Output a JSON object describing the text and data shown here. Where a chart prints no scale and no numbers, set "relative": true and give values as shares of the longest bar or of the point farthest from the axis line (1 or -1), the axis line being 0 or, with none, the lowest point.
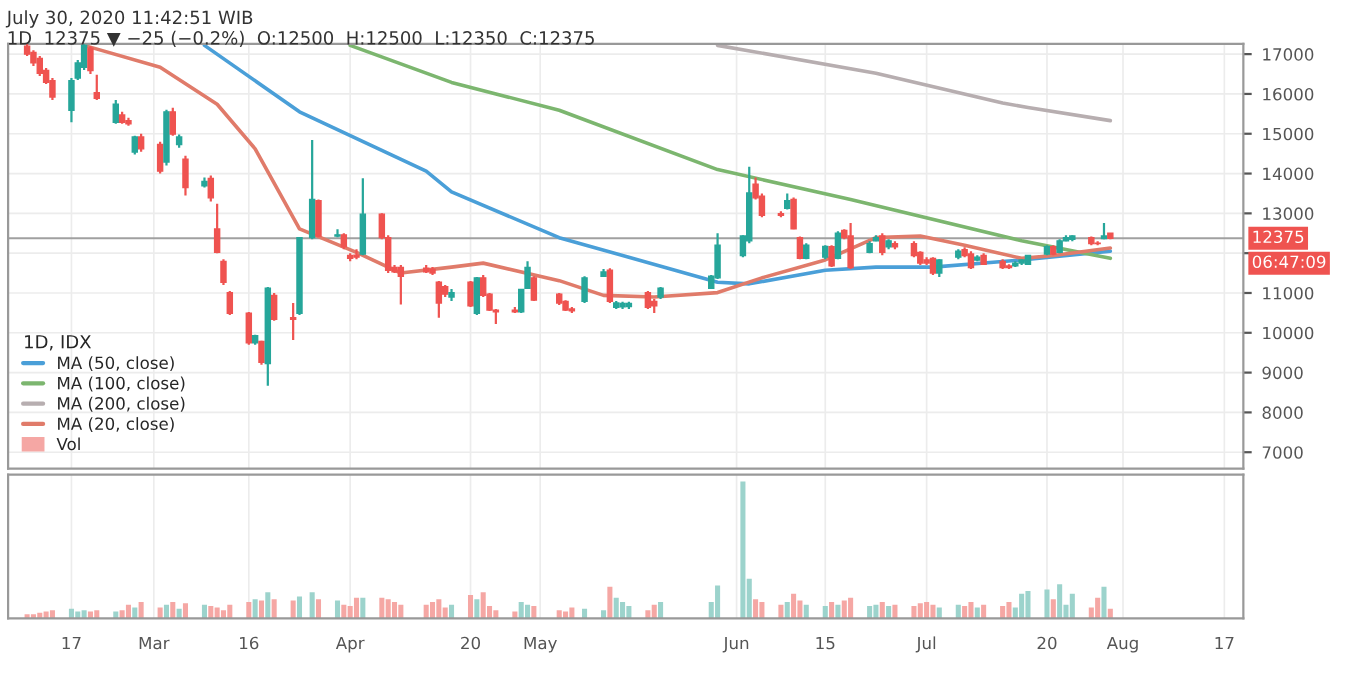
{
  "chart_data": [
    {
      "type": "candlestick",
      "title": "1D, IDX",
      "annotations": [
        "July 30, 2020 11:42:51 WIB",
        "1D  12375 ▼ −25 (−0.2%)  O:12500  H:12500  L:12350  C:12375",
        "06:47:09"
      ],
      "x": [
        "2020-02-10",
        "2020-02-11",
        "2020-02-12",
        "2020-02-13",
        "2020-02-14",
        "2020-02-17",
        "2020-02-18",
        "2020-02-19",
        "2020-02-20",
        "2020-02-21",
        "2020-02-24",
        "2020-02-25",
        "2020-02-26",
        "2020-02-27",
        "2020-02-28",
        "2020-03-02",
        "2020-03-03",
        "2020-03-04",
        "2020-03-05",
        "2020-03-06",
        "2020-03-09",
        "2020-03-10",
        "2020-03-11",
        "2020-03-12",
        "2020-03-13",
        "2020-03-16",
        "2020-03-17",
        "2020-03-18",
        "2020-03-19",
        "2020-03-20",
        "2020-03-23",
        "2020-03-24",
        "2020-03-26",
        "2020-03-27",
        "2020-03-30",
        "2020-03-31",
        "2020-04-01",
        "2020-04-02",
        "2020-04-03",
        "2020-04-06",
        "2020-04-07",
        "2020-04-08",
        "2020-04-09",
        "2020-04-13",
        "2020-04-14",
        "2020-04-15",
        "2020-04-16",
        "2020-04-17",
        "2020-04-20",
        "2020-04-21",
        "2020-04-22",
        "2020-04-23",
        "2020-04-24",
        "2020-04-27",
        "2020-04-28",
        "2020-04-29",
        "2020-04-30",
        "2020-05-04",
        "2020-05-05",
        "2020-05-06",
        "2020-05-08",
        "2020-05-11",
        "2020-05-12",
        "2020-05-13",
        "2020-05-14",
        "2020-05-15",
        "2020-05-18",
        "2020-05-19",
        "2020-05-20",
        "2020-05-28",
        "2020-05-29",
        "2020-06-02",
        "2020-06-03",
        "2020-06-04",
        "2020-06-05",
        "2020-06-08",
        "2020-06-09",
        "2020-06-10",
        "2020-06-11",
        "2020-06-12",
        "2020-06-15",
        "2020-06-16",
        "2020-06-17",
        "2020-06-18",
        "2020-06-19",
        "2020-06-22",
        "2020-06-23",
        "2020-06-24",
        "2020-06-25",
        "2020-06-26",
        "2020-06-29",
        "2020-06-30",
        "2020-07-01",
        "2020-07-02",
        "2020-07-03",
        "2020-07-06",
        "2020-07-07",
        "2020-07-08",
        "2020-07-09",
        "2020-07-10",
        "2020-07-13",
        "2020-07-14",
        "2020-07-15",
        "2020-07-16",
        "2020-07-17",
        "2020-07-20",
        "2020-07-21",
        "2020-07-22",
        "2020-07-23",
        "2020-07-24",
        "2020-07-27",
        "2020-07-28",
        "2020-07-29",
        "2020-07-30"
      ],
      "ohlc": [
        [
          17200,
          17260,
          16950,
          17000
        ],
        [
          17040,
          17100,
          16700,
          16780
        ],
        [
          16890,
          16950,
          16450,
          16520
        ],
        [
          16590,
          16650,
          16250,
          16290
        ],
        [
          16330,
          16400,
          15850,
          15920
        ],
        [
          15590,
          16400,
          15290,
          16330
        ],
        [
          16400,
          16850,
          16350,
          16780
        ],
        [
          16670,
          17250,
          16600,
          17220
        ],
        [
          17150,
          17200,
          16500,
          16590
        ],
        [
          16030,
          16480,
          15850,
          15890
        ],
        [
          15290,
          15850,
          15250,
          15740
        ],
        [
          15470,
          15550,
          15250,
          15290
        ],
        [
          15330,
          15400,
          15200,
          15250
        ],
        [
          14540,
          14950,
          14480,
          14920
        ],
        [
          14920,
          15000,
          14550,
          14620
        ],
        [
          14730,
          14800,
          14000,
          14060
        ],
        [
          14290,
          15600,
          14200,
          15550
        ],
        [
          15550,
          15650,
          14950,
          14990
        ],
        [
          14730,
          14980,
          14650,
          14920
        ],
        [
          14360,
          14450,
          13450,
          13650
        ],
        [
          13690,
          13900,
          13650,
          13800
        ],
        [
          13880,
          13950,
          13300,
          13390
        ],
        [
          12610,
          13240,
          12000,
          12020
        ],
        [
          11790,
          11850,
          11200,
          11270
        ],
        [
          11010,
          11050,
          10450,
          10490
        ],
        [
          10490,
          10520,
          9700,
          9750
        ],
        [
          9750,
          9950,
          9700,
          9930
        ],
        [
          9780,
          9800,
          9200,
          9260
        ],
        [
          9230,
          11150,
          8670,
          11120
        ],
        [
          10940,
          11000,
          10300,
          10340
        ],
        [
          10380,
          10750,
          9820,
          10340
        ],
        [
          10490,
          12400,
          10450,
          12390
        ],
        [
          12390,
          14840,
          12350,
          13350
        ],
        [
          13320,
          13350,
          12400,
          12430
        ],
        [
          12430,
          12600,
          12400,
          12460
        ],
        [
          12460,
          12500,
          12100,
          12160
        ],
        [
          11940,
          12000,
          11800,
          11870
        ],
        [
          11950,
          12100,
          11850,
          11900
        ],
        [
          11980,
          13880,
          11950,
          12980
        ],
        [
          12980,
          13000,
          12350,
          12390
        ],
        [
          12390,
          12450,
          11500,
          11570
        ],
        [
          11640,
          11700,
          11500,
          11530
        ],
        [
          11640,
          11700,
          10710,
          11420
        ],
        [
          11620,
          11700,
          11500,
          11530
        ],
        [
          11600,
          11650,
          11450,
          11500
        ],
        [
          11270,
          11300,
          10380,
          10750
        ],
        [
          11160,
          11200,
          10900,
          10970
        ],
        [
          10900,
          11100,
          10800,
          11010
        ],
        [
          11270,
          11300,
          10650,
          10680
        ],
        [
          10490,
          11400,
          10450,
          11380
        ],
        [
          11380,
          11450,
          10900,
          10940
        ],
        [
          10970,
          11000,
          10550,
          10570
        ],
        [
          10570,
          10600,
          10220,
          10530
        ],
        [
          10570,
          10650,
          10500,
          10530
        ],
        [
          10530,
          11100,
          10500,
          11090
        ],
        [
          11120,
          11800,
          11100,
          11640
        ],
        [
          11380,
          11420,
          10800,
          10820
        ],
        [
          10970,
          11000,
          10700,
          10750
        ],
        [
          10790,
          10820,
          10550,
          10570
        ],
        [
          10600,
          10650,
          10500,
          10550
        ],
        [
          10790,
          11420,
          10750,
          11380
        ],
        [
          11420,
          11600,
          11400,
          11530
        ],
        [
          11570,
          11620,
          10750,
          10790
        ],
        [
          10640,
          10800,
          10600,
          10750
        ],
        [
          10650,
          10780,
          10600,
          10740
        ],
        [
          10660,
          10780,
          10600,
          10740
        ],
        [
          11010,
          11050,
          10600,
          10640
        ],
        [
          10790,
          10850,
          10500,
          10680
        ],
        [
          10900,
          11150,
          10850,
          11120
        ],
        [
          11120,
          11450,
          11100,
          11420
        ],
        [
          11380,
          12500,
          11350,
          12200
        ],
        [
          11940,
          12450,
          11900,
          12430
        ],
        [
          12310,
          14170,
          12250,
          13510
        ],
        [
          13730,
          13900,
          13350,
          13390
        ],
        [
          13430,
          13500,
          12900,
          12950
        ],
        [
          12990,
          13050,
          12900,
          12950
        ],
        [
          13130,
          13500,
          13100,
          13320
        ],
        [
          13350,
          13400,
          12600,
          12610
        ],
        [
          12390,
          12420,
          11850,
          11870
        ],
        [
          11870,
          12250,
          11850,
          12200
        ],
        [
          11900,
          12200,
          11850,
          12170
        ],
        [
          12160,
          12200,
          11650,
          11680
        ],
        [
          11870,
          12550,
          11850,
          12500
        ],
        [
          12570,
          12600,
          12350,
          12390
        ],
        [
          12430,
          12760,
          11600,
          11640
        ],
        [
          12020,
          12300,
          12000,
          12240
        ],
        [
          12310,
          12450,
          12300,
          12390
        ],
        [
          12430,
          12500,
          11950,
          12020
        ],
        [
          12160,
          12350,
          12100,
          12310
        ],
        [
          12240,
          12300,
          12100,
          12160
        ],
        [
          12240,
          12300,
          11900,
          11940
        ],
        [
          12020,
          12050,
          11700,
          11750
        ],
        [
          11830,
          11900,
          11700,
          11750
        ],
        [
          11870,
          11900,
          11450,
          11500
        ],
        [
          11500,
          11850,
          11400,
          11830
        ],
        [
          11900,
          12100,
          11850,
          12050
        ],
        [
          12090,
          12150,
          11900,
          11940
        ],
        [
          11980,
          12050,
          11600,
          11640
        ],
        [
          11830,
          11950,
          11800,
          11900
        ],
        [
          11940,
          12000,
          11700,
          11720
        ],
        [
          11790,
          11850,
          11600,
          11640
        ],
        [
          11680,
          11720,
          11600,
          11640
        ],
        [
          11680,
          11800,
          11650,
          11750
        ],
        [
          11750,
          11850,
          11700,
          11830
        ],
        [
          11720,
          11950,
          11700,
          11940
        ],
        [
          11980,
          12200,
          11950,
          12160
        ],
        [
          12160,
          12200,
          11950,
          11980
        ],
        [
          12020,
          12350,
          12000,
          12310
        ],
        [
          12310,
          12450,
          12300,
          12390
        ],
        [
          12350,
          12450,
          12300,
          12430
        ],
        [
          12390,
          12420,
          12200,
          12240
        ],
        [
          12250,
          12300,
          12200,
          12240
        ],
        [
          12370,
          12760,
          12350,
          12430
        ],
        [
          12500,
          12500,
          12350,
          12375
        ]
      ],
      "colors": [
        "#ef5350",
        "#ef5350",
        "#ef5350",
        "#ef5350",
        "#ef5350",
        "#26a69a",
        "#26a69a",
        "#26a69a",
        "#ef5350",
        "#ef5350",
        "#26a69a",
        "#ef5350",
        "#ef5350",
        "#26a69a",
        "#ef5350",
        "#ef5350",
        "#26a69a",
        "#ef5350",
        "#26a69a",
        "#ef5350",
        "#26a69a",
        "#ef5350",
        "#ef5350",
        "#ef5350",
        "#ef5350",
        "#ef5350",
        "#26a69a",
        "#ef5350",
        "#26a69a",
        "#ef5350",
        "#ef5350",
        "#26a69a",
        "#26a69a",
        "#ef5350",
        "#26a69a",
        "#ef5350",
        "#ef5350",
        "#ef5350",
        "#26a69a",
        "#ef5350",
        "#ef5350",
        "#ef5350",
        "#ef5350",
        "#ef5350",
        "#ef5350",
        "#ef5350",
        "#ef5350",
        "#26a69a",
        "#ef5350",
        "#26a69a",
        "#ef5350",
        "#ef5350",
        "#ef5350",
        "#ef5350",
        "#26a69a",
        "#26a69a",
        "#ef5350",
        "#ef5350",
        "#ef5350",
        "#ef5350",
        "#26a69a",
        "#26a69a",
        "#ef5350",
        "#26a69a",
        "#26a69a",
        "#26a69a",
        "#ef5350",
        "#ef5350",
        "#26a69a",
        "#26a69a",
        "#26a69a",
        "#26a69a",
        "#26a69a",
        "#ef5350",
        "#ef5350",
        "#ef5350",
        "#26a69a",
        "#ef5350",
        "#ef5350",
        "#26a69a",
        "#26a69a",
        "#ef5350",
        "#26a69a",
        "#ef5350",
        "#ef5350",
        "#26a69a",
        "#26a69a",
        "#ef5350",
        "#26a69a",
        "#ef5350",
        "#ef5350",
        "#ef5350",
        "#ef5350",
        "#ef5350",
        "#26a69a",
        "#26a69a",
        "#ef5350",
        "#ef5350",
        "#26a69a",
        "#ef5350",
        "#ef5350",
        "#ef5350",
        "#26a69a",
        "#26a69a",
        "#26a69a",
        "#26a69a",
        "#ef5350",
        "#26a69a",
        "#26a69a",
        "#26a69a",
        "#ef5350",
        "#ef5350",
        "#26a69a",
        "#ef5350"
      ],
      "series": [
        {
          "name": "MA (50, close)",
          "type": "line",
          "color": "#4a9fd8",
          "x": [
            "2020-03-09",
            "2020-03-24",
            "2020-04-13",
            "2020-04-17",
            "2020-05-04",
            "2020-05-29",
            "2020-06-03",
            "2020-06-15",
            "2020-06-23",
            "2020-07-02",
            "2020-07-16",
            "2020-07-30"
          ],
          "values": [
            17220,
            15550,
            14060,
            13540,
            12390,
            11270,
            11230,
            11570,
            11650,
            11650,
            11830,
            12050
          ]
        },
        {
          "name": "MA (100, close)",
          "type": "line",
          "color": "#7cb66f",
          "x": [
            "2020-04-01",
            "2020-04-17",
            "2020-05-04",
            "2020-05-29",
            "2020-06-19",
            "2020-07-16",
            "2020-07-30"
          ],
          "values": [
            17220,
            16290,
            15590,
            14100,
            13350,
            12310,
            11870
          ]
        },
        {
          "name": "MA (200, close)",
          "type": "line",
          "color": "#b7aeb0",
          "x": [
            "2020-05-29",
            "2020-06-23",
            "2020-07-13",
            "2020-07-17",
            "2020-07-30"
          ],
          "values": [
            17220,
            16520,
            15770,
            15660,
            15330
          ]
        },
        {
          "name": "MA (20, close)",
          "type": "line",
          "color": "#e07b6a",
          "x": [
            "2020-02-19",
            "2020-03-02",
            "2020-03-11",
            "2020-03-17",
            "2020-03-24",
            "2020-04-02",
            "2020-04-09",
            "2020-04-17",
            "2020-04-22",
            "2020-05-04",
            "2020-05-11",
            "2020-05-19",
            "2020-05-29",
            "2020-06-05",
            "2020-06-15",
            "2020-06-23",
            "2020-06-30",
            "2020-07-07",
            "2020-07-16",
            "2020-07-21",
            "2020-07-30"
          ],
          "values": [
            17220,
            16670,
            15740,
            14620,
            12610,
            12020,
            11500,
            11650,
            11750,
            11310,
            10940,
            10900,
            11010,
            11380,
            11830,
            12390,
            12430,
            12200,
            11870,
            11940,
            12130
          ]
        }
      ],
      "ref_lines": [
        {
          "axis": "y",
          "value": 12375,
          "label": "12375",
          "color": "#a0a0a0"
        }
      ],
      "xlim": [
        "2020-02-07",
        "2020-08-20"
      ],
      "ylim": [
        6590,
        17260
      ],
      "yticks": [
        7000,
        8000,
        9000,
        10000,
        11000,
        {
          "value": 12000,
          "label": null
        },
        13000,
        14000,
        15000,
        16000,
        17000
      ],
      "grid": true,
      "legend": "bottom left",
      "tick_labels": "y"
    },
    {
      "type": "bar",
      "relative": true,
      "grid": "x",
      "xlim": [
        "2020-02-07",
        "2020-08-20"
      ],
      "xticks": [
        {
          "value": "2020-02-17",
          "label": "17"
        },
        {
          "value": "2020-03-01",
          "label": "Mar"
        },
        {
          "value": "2020-03-16",
          "label": "16"
        },
        {
          "value": "2020-04-01",
          "label": "Apr"
        },
        {
          "value": "2020-04-20",
          "label": "20"
        },
        {
          "value": "2020-05-01",
          "label": "May"
        },
        {
          "value": "2020-06-01",
          "label": "Jun"
        },
        {
          "value": "2020-06-15",
          "label": "15"
        },
        {
          "value": "2020-07-01",
          "label": "Jul"
        },
        {
          "value": "2020-07-20",
          "label": "20"
        },
        {
          "value": "2020-08-01",
          "label": "Aug"
        },
        {
          "value": "2020-08-17",
          "label": "17"
        }
      ],
      "x": [
        "2020-02-10",
        "2020-02-11",
        "2020-02-12",
        "2020-02-13",
        "2020-02-14",
        "2020-02-17",
        "2020-02-18",
        "2020-02-19",
        "2020-02-20",
        "2020-02-21",
        "2020-02-24",
        "2020-02-25",
        "2020-02-26",
        "2020-02-27",
        "2020-02-28",
        "2020-03-02",
        "2020-03-03",
        "2020-03-04",
        "2020-03-05",
        "2020-03-06",
        "2020-03-09",
        "2020-03-10",
        "2020-03-11",
        "2020-03-12",
        "2020-03-13",
        "2020-03-16",
        "2020-03-17",
        "2020-03-18",
        "2020-03-19",
        "2020-03-20",
        "2020-03-23",
        "2020-03-24",
        "2020-03-26",
        "2020-03-27",
        "2020-03-30",
        "2020-03-31",
        "2020-04-01",
        "2020-04-02",
        "2020-04-03",
        "2020-04-06",
        "2020-04-07",
        "2020-04-08",
        "2020-04-09",
        "2020-04-13",
        "2020-04-14",
        "2020-04-15",
        "2020-04-16",
        "2020-04-17",
        "2020-04-20",
        "2020-04-21",
        "2020-04-22",
        "2020-04-23",
        "2020-04-24",
        "2020-04-27",
        "2020-04-28",
        "2020-04-29",
        "2020-04-30",
        "2020-05-04",
        "2020-05-05",
        "2020-05-06",
        "2020-05-08",
        "2020-05-11",
        "2020-05-12",
        "2020-05-13",
        "2020-05-14",
        "2020-05-15",
        "2020-05-18",
        "2020-05-19",
        "2020-05-20",
        "2020-05-28",
        "2020-05-29",
        "2020-06-02",
        "2020-06-03",
        "2020-06-04",
        "2020-06-05",
        "2020-06-08",
        "2020-06-09",
        "2020-06-10",
        "2020-06-11",
        "2020-06-12",
        "2020-06-15",
        "2020-06-16",
        "2020-06-17",
        "2020-06-18",
        "2020-06-19",
        "2020-06-22",
        "2020-06-23",
        "2020-06-24",
        "2020-06-25",
        "2020-06-26",
        "2020-06-29",
        "2020-06-30",
        "2020-07-01",
        "2020-07-02",
        "2020-07-03",
        "2020-07-06",
        "2020-07-07",
        "2020-07-08",
        "2020-07-09",
        "2020-07-10",
        "2020-07-13",
        "2020-07-14",
        "2020-07-15",
        "2020-07-16",
        "2020-07-17",
        "2020-07-20",
        "2020-07-21",
        "2020-07-22",
        "2020-07-23",
        "2020-07-24",
        "2020-07-27",
        "2020-07-28",
        "2020-07-29",
        "2020-07-30"
      ],
      "series": [
        {
          "name": "Vol",
          "values": [
            0.03,
            0.03,
            0.04,
            0.05,
            0.06,
            0.07,
            0.05,
            0.06,
            0.05,
            0.06,
            0.05,
            0.06,
            0.1,
            0.08,
            0.12,
            0.08,
            0.1,
            0.12,
            0.07,
            0.11,
            0.1,
            0.09,
            0.08,
            0.06,
            0.1,
            0.12,
            0.14,
            0.13,
            0.19,
            0.14,
            0.13,
            0.16,
            0.19,
            0.14,
            0.13,
            0.1,
            0.09,
            0.15,
            0.15,
            0.15,
            0.14,
            0.12,
            0.1,
            0.1,
            0.12,
            0.14,
            0.08,
            0.1,
            0.17,
            0.14,
            0.19,
            0.09,
            0.06,
            0.05,
            0.12,
            0.1,
            0.09,
            0.06,
            0.05,
            0.08,
            0.07,
            0.06,
            0.23,
            0.15,
            0.12,
            0.09,
            0.06,
            0.1,
            0.12,
            0.12,
            0.24,
            1,
            0.29,
            0.14,
            0.12,
            0.1,
            0.12,
            0.18,
            0.13,
            0.1,
            0.09,
            0.12,
            0.1,
            0.13,
            0.15,
            0.09,
            0.1,
            0.12,
            0.09,
            0.1,
            0.09,
            0.11,
            0.12,
            0.1,
            0.08,
            0.1,
            0.09,
            0.12,
            0.08,
            0.1,
            0.09,
            0.12,
            0.08,
            0.18,
            0.2,
            0.21,
            0.14,
            0.25,
            0.1,
            0.18,
            0.08,
            0.15,
            0.23,
            0.07
          ],
          "colors": [
            "#f5a7a4",
            "#f5a7a4",
            "#f5a7a4",
            "#f5a7a4",
            "#f5a7a4",
            "#9cd3cc",
            "#9cd3cc",
            "#9cd3cc",
            "#f5a7a4",
            "#f5a7a4",
            "#9cd3cc",
            "#f5a7a4",
            "#f5a7a4",
            "#9cd3cc",
            "#f5a7a4",
            "#f5a7a4",
            "#9cd3cc",
            "#f5a7a4",
            "#9cd3cc",
            "#f5a7a4",
            "#9cd3cc",
            "#f5a7a4",
            "#f5a7a4",
            "#f5a7a4",
            "#f5a7a4",
            "#f5a7a4",
            "#9cd3cc",
            "#f5a7a4",
            "#9cd3cc",
            "#f5a7a4",
            "#f5a7a4",
            "#9cd3cc",
            "#9cd3cc",
            "#f5a7a4",
            "#9cd3cc",
            "#f5a7a4",
            "#f5a7a4",
            "#f5a7a4",
            "#9cd3cc",
            "#f5a7a4",
            "#f5a7a4",
            "#f5a7a4",
            "#f5a7a4",
            "#f5a7a4",
            "#f5a7a4",
            "#f5a7a4",
            "#f5a7a4",
            "#9cd3cc",
            "#f5a7a4",
            "#9cd3cc",
            "#f5a7a4",
            "#f5a7a4",
            "#f5a7a4",
            "#f5a7a4",
            "#9cd3cc",
            "#9cd3cc",
            "#f5a7a4",
            "#f5a7a4",
            "#f5a7a4",
            "#f5a7a4",
            "#9cd3cc",
            "#9cd3cc",
            "#f5a7a4",
            "#9cd3cc",
            "#9cd3cc",
            "#9cd3cc",
            "#f5a7a4",
            "#f5a7a4",
            "#9cd3cc",
            "#9cd3cc",
            "#9cd3cc",
            "#9cd3cc",
            "#9cd3cc",
            "#f5a7a4",
            "#f5a7a4",
            "#f5a7a4",
            "#9cd3cc",
            "#f5a7a4",
            "#f5a7a4",
            "#9cd3cc",
            "#9cd3cc",
            "#f5a7a4",
            "#9cd3cc",
            "#f5a7a4",
            "#f5a7a4",
            "#9cd3cc",
            "#9cd3cc",
            "#f5a7a4",
            "#9cd3cc",
            "#f5a7a4",
            "#f5a7a4",
            "#f5a7a4",
            "#f5a7a4",
            "#f5a7a4",
            "#9cd3cc",
            "#9cd3cc",
            "#f5a7a4",
            "#f5a7a4",
            "#9cd3cc",
            "#f5a7a4",
            "#f5a7a4",
            "#f5a7a4",
            "#9cd3cc",
            "#9cd3cc",
            "#9cd3cc",
            "#9cd3cc",
            "#f5a7a4",
            "#9cd3cc",
            "#9cd3cc",
            "#9cd3cc",
            "#f5a7a4",
            "#f5a7a4",
            "#9cd3cc",
            "#f5a7a4"
          ]
        }
      ]
    }
  ]
}
